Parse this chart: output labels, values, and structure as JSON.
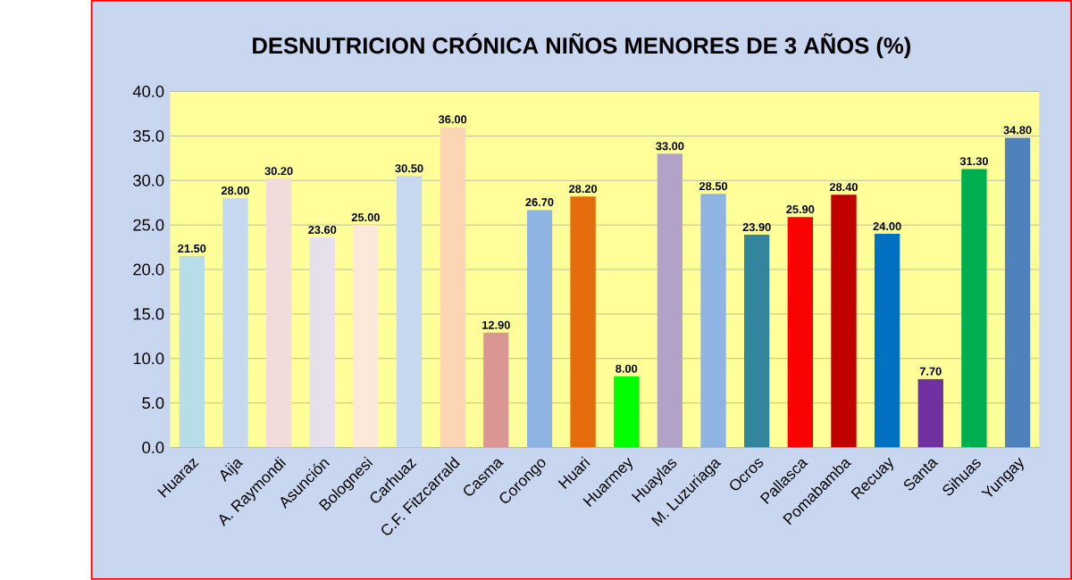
{
  "chart_data": {
    "type": "bar",
    "title": "DESNUTRICION CRÓNICA NIÑOS MENORES DE 3 AÑOS (%)",
    "categories": [
      "Huaraz",
      "Aija",
      "A. Raymondi",
      "Asunción",
      "Bolognesi",
      "Carhuaz",
      "C.F. Fitzcarrald",
      "Casma",
      "Corongo",
      "Huari",
      "Huarmey",
      "Huaylas",
      "M. Luzuriaga",
      "Ocros",
      "Pallasca",
      "Pomabamba",
      "Recuay",
      "Santa",
      "Sihuas",
      "Yungay"
    ],
    "values": [
      21.5,
      28.0,
      30.2,
      23.6,
      25.0,
      30.5,
      36.0,
      12.9,
      26.7,
      28.2,
      8.0,
      33.0,
      28.5,
      23.9,
      25.9,
      28.4,
      24.0,
      7.7,
      31.3,
      34.8
    ],
    "value_labels": [
      "21.50",
      "28.00",
      "30.20",
      "23.60",
      "25.00",
      "30.50",
      "36.00",
      "12.90",
      "26.70",
      "28.20",
      "8.00",
      "33.00",
      "28.50",
      "23.90",
      "25.90",
      "28.40",
      "24.00",
      "7.70",
      "31.30",
      "34.80"
    ],
    "colors": [
      "#b7dde8",
      "#c6d9f1",
      "#f2dcdb",
      "#e6e0ec",
      "#fde9d9",
      "#c6d9f1",
      "#fcd5b5",
      "#d99694",
      "#8eb4e3",
      "#e46c0a",
      "#00ff00",
      "#b3a2c7",
      "#8eb4e3",
      "#31859c",
      "#ff0000",
      "#c00000",
      "#0070c0",
      "#7030a0",
      "#00b050",
      "#4f81bd"
    ],
    "ylim": [
      0,
      40
    ],
    "yticks": [
      {
        "value": 0,
        "label": "0.0"
      },
      {
        "value": 5,
        "label": "5.0"
      },
      {
        "value": 10,
        "label": "10.0"
      },
      {
        "value": 15,
        "label": "15.0"
      },
      {
        "value": 20,
        "label": "20.0"
      },
      {
        "value": 25,
        "label": "25.0"
      },
      {
        "value": 30,
        "label": "30.0"
      },
      {
        "value": 35,
        "label": "35.0"
      },
      {
        "value": 40,
        "label": "40.0"
      }
    ],
    "grid": "y"
  }
}
